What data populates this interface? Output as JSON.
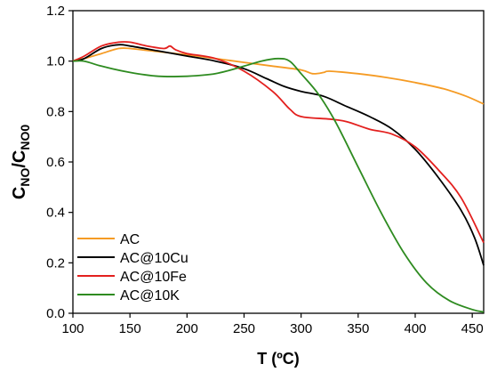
{
  "chart_data": {
    "type": "line",
    "xlabel": "T (ºC)",
    "ylabel": {
      "main": "C",
      "sub_top": "NO",
      "slash": "/C",
      "sub_bottom": "NO0"
    },
    "xlim": [
      100,
      460
    ],
    "ylim": [
      0.0,
      1.2
    ],
    "x_ticks": [
      100,
      150,
      200,
      250,
      300,
      350,
      400,
      450
    ],
    "y_ticks": [
      0.0,
      0.2,
      0.4,
      0.6,
      0.8,
      1.0,
      1.2
    ],
    "y_tick_labels": [
      "0.0",
      "0.2",
      "0.4",
      "0.6",
      "0.8",
      "1.0",
      "1.2"
    ],
    "grid": false,
    "legend_position": "bottom-left",
    "series": [
      {
        "name": "AC",
        "color": "#F59B24",
        "points": [
          [
            100,
            1.0
          ],
          [
            110,
            1.01
          ],
          [
            125,
            1.03
          ],
          [
            140,
            1.05
          ],
          [
            150,
            1.05
          ],
          [
            170,
            1.04
          ],
          [
            200,
            1.025
          ],
          [
            225,
            1.01
          ],
          [
            250,
            0.995
          ],
          [
            275,
            0.98
          ],
          [
            300,
            0.965
          ],
          [
            310,
            0.95
          ],
          [
            320,
            0.955
          ],
          [
            325,
            0.96
          ],
          [
            350,
            0.95
          ],
          [
            375,
            0.935
          ],
          [
            400,
            0.915
          ],
          [
            425,
            0.89
          ],
          [
            445,
            0.86
          ],
          [
            460,
            0.83
          ]
        ]
      },
      {
        "name": "AC@10Cu",
        "color": "#000000",
        "points": [
          [
            100,
            1.0
          ],
          [
            110,
            1.01
          ],
          [
            125,
            1.05
          ],
          [
            140,
            1.065
          ],
          [
            150,
            1.06
          ],
          [
            175,
            1.04
          ],
          [
            200,
            1.02
          ],
          [
            225,
            1.0
          ],
          [
            250,
            0.97
          ],
          [
            270,
            0.93
          ],
          [
            285,
            0.9
          ],
          [
            300,
            0.88
          ],
          [
            320,
            0.86
          ],
          [
            340,
            0.82
          ],
          [
            360,
            0.78
          ],
          [
            380,
            0.73
          ],
          [
            400,
            0.65
          ],
          [
            420,
            0.54
          ],
          [
            440,
            0.41
          ],
          [
            452,
            0.3
          ],
          [
            460,
            0.19
          ]
        ]
      },
      {
        "name": "AC@10Fe",
        "color": "#E3201E",
        "points": [
          [
            100,
            1.0
          ],
          [
            110,
            1.02
          ],
          [
            125,
            1.06
          ],
          [
            140,
            1.075
          ],
          [
            150,
            1.075
          ],
          [
            165,
            1.06
          ],
          [
            180,
            1.05
          ],
          [
            185,
            1.06
          ],
          [
            190,
            1.045
          ],
          [
            200,
            1.03
          ],
          [
            225,
            1.01
          ],
          [
            250,
            0.96
          ],
          [
            275,
            0.88
          ],
          [
            290,
            0.81
          ],
          [
            300,
            0.78
          ],
          [
            325,
            0.77
          ],
          [
            340,
            0.76
          ],
          [
            360,
            0.73
          ],
          [
            380,
            0.71
          ],
          [
            400,
            0.66
          ],
          [
            420,
            0.57
          ],
          [
            440,
            0.46
          ],
          [
            460,
            0.28
          ]
        ]
      },
      {
        "name": "AC@10K",
        "color": "#2E8B20",
        "points": [
          [
            100,
            1.0
          ],
          [
            110,
            1.0
          ],
          [
            125,
            0.98
          ],
          [
            150,
            0.955
          ],
          [
            175,
            0.94
          ],
          [
            200,
            0.94
          ],
          [
            225,
            0.95
          ],
          [
            250,
            0.98
          ],
          [
            265,
            1.0
          ],
          [
            280,
            1.01
          ],
          [
            290,
            1.0
          ],
          [
            300,
            0.95
          ],
          [
            315,
            0.87
          ],
          [
            330,
            0.76
          ],
          [
            350,
            0.58
          ],
          [
            370,
            0.4
          ],
          [
            390,
            0.24
          ],
          [
            410,
            0.12
          ],
          [
            430,
            0.05
          ],
          [
            450,
            0.015
          ],
          [
            460,
            0.005
          ]
        ]
      }
    ]
  }
}
